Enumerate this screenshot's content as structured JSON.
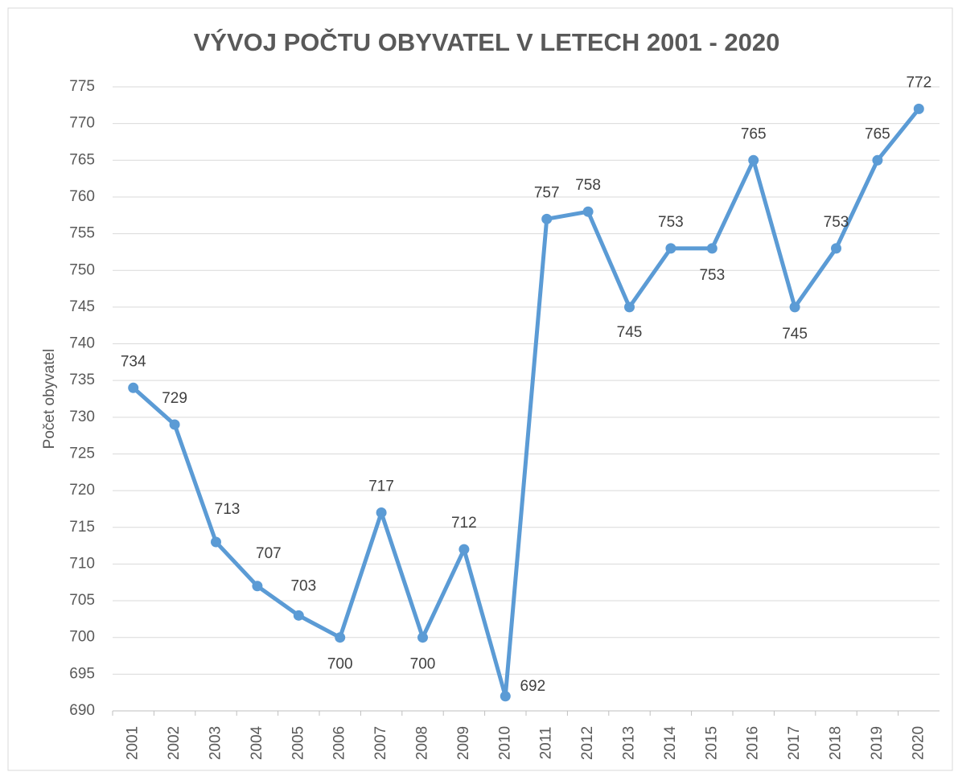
{
  "chart_data": {
    "type": "line",
    "title": "VÝVOJ POČTU OBYVATEL V LETECH 2001 - 2020",
    "y_label": "Počet obyvatel",
    "categories": [
      "2001",
      "2002",
      "2003",
      "2004",
      "2005",
      "2006",
      "2007",
      "2008",
      "2009",
      "2010",
      "2011",
      "2012",
      "2013",
      "2014",
      "2015",
      "2016",
      "2017",
      "2018",
      "2019",
      "2020"
    ],
    "series": [
      {
        "name": "Počet obyvatel",
        "color": "#5b9bd5",
        "values": [
          734,
          729,
          713,
          707,
          703,
          700,
          717,
          700,
          712,
          692,
          757,
          758,
          745,
          753,
          753,
          765,
          745,
          753,
          765,
          772
        ]
      }
    ],
    "ylim": [
      690,
      775
    ],
    "yticks": [
      690,
      695,
      700,
      705,
      710,
      715,
      720,
      725,
      730,
      735,
      740,
      745,
      750,
      755,
      760,
      765,
      770,
      775
    ],
    "grid": true
  }
}
